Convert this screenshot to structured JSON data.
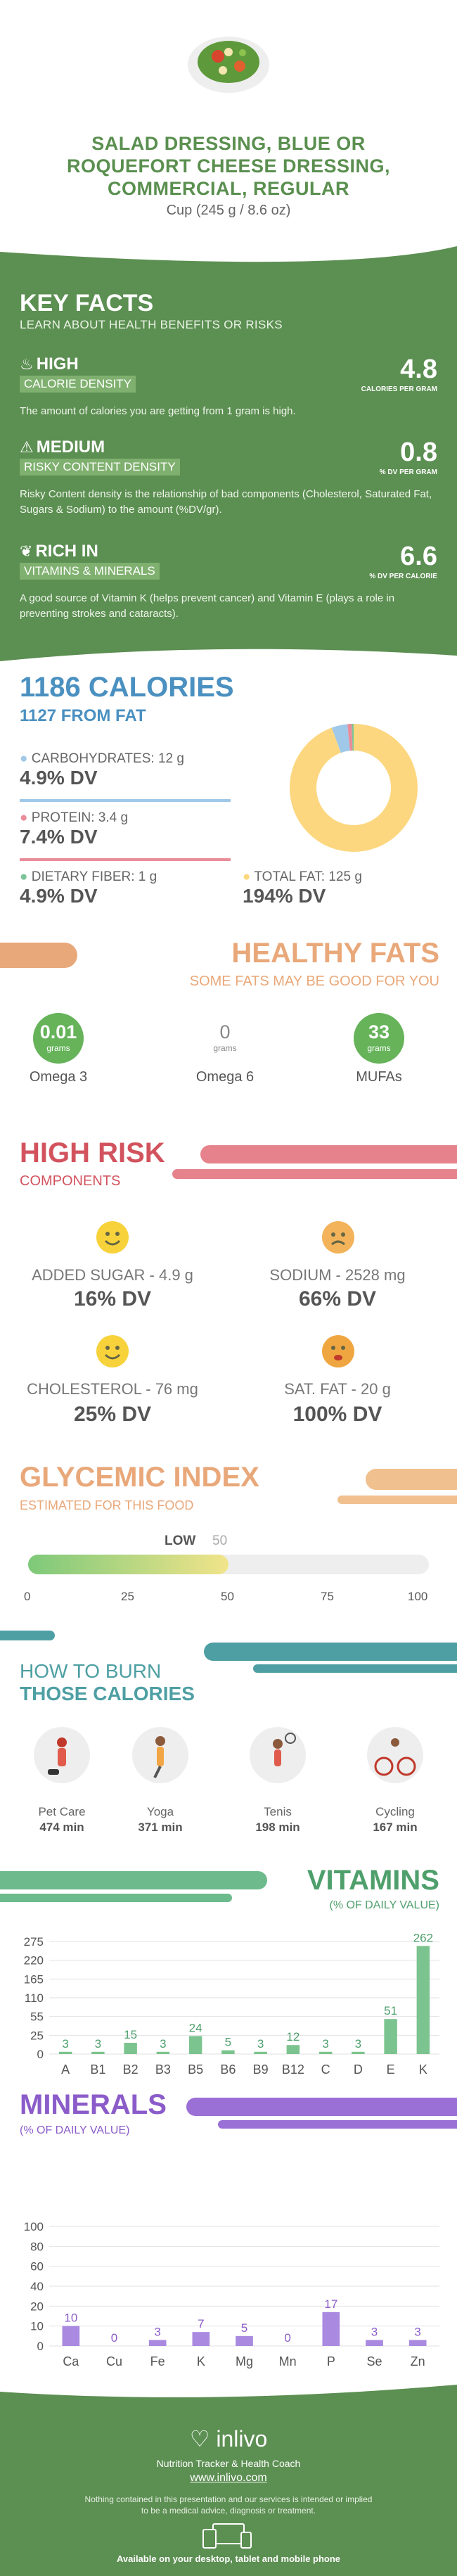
{
  "header": {
    "title_line1": "SALAD DRESSING, BLUE OR",
    "title_line2": "ROQUEFORT CHEESE DRESSING,",
    "title_line3": "COMMERCIAL, REGULAR",
    "serving": "Cup (245 g / 8.6 oz)"
  },
  "key_facts": {
    "title": "KEY FACTS",
    "subtitle": "LEARN ABOUT HEALTH BENEFITS OR RISKS",
    "items": [
      {
        "level": "HIGH",
        "label": "CALORIE DENSITY",
        "value": "4.8",
        "unit": "CALORIES PER GRAM",
        "desc": "The amount of calories you are getting from 1 gram is high."
      },
      {
        "level": "MEDIUM",
        "label": "RISKY CONTENT DENSITY",
        "value": "0.8",
        "unit": "% DV PER GRAM",
        "desc": "Risky Content density is the relationship of bad components (Cholesterol, Saturated Fat, Sugars & Sodium) to the amount (%DV/gr)."
      },
      {
        "level": "RICH  IN",
        "label": "VITAMINS & MINERALS",
        "value": "6.6",
        "unit": "% DV PER CALORIE",
        "desc": "A good source of Vitamin K (helps prevent cancer) and Vitamin E (plays a role in preventing strokes and cataracts)."
      }
    ]
  },
  "calories": {
    "title": "1186 CALORIES",
    "from_fat": "1127 FROM FAT",
    "carb_label": "CARBOHYDRATES: 12 g",
    "carb_dv": "4.9% DV",
    "protein_label": "PROTEIN: 3.4 g",
    "protein_dv": "7.4% DV",
    "fiber_label": "DIETARY FIBER: 1 g",
    "fiber_dv": "4.9% DV",
    "fat_label": "TOTAL FAT: 125 g",
    "fat_dv": "194% DV",
    "donut": {
      "fat": 94.4,
      "carb": 4.0,
      "protein": 1.1,
      "fiber": 0.5
    },
    "colors": {
      "fat": "#fcd77f",
      "carb": "#a0c8e8",
      "protein": "#e98d9a",
      "fiber": "#7dc49a"
    }
  },
  "healthy_fats": {
    "title": "HEALTHY FATS",
    "subtitle": "SOME FATS MAY BE GOOD FOR YOU",
    "items": [
      {
        "value": "0.01",
        "unit": "grams",
        "name": "Omega 3"
      },
      {
        "value": "0",
        "unit": "grams",
        "name": "Omega 6"
      },
      {
        "value": "33",
        "unit": "grams",
        "name": "MUFAs"
      }
    ]
  },
  "high_risk": {
    "title": "HIGH RISK",
    "subtitle": "COMPONENTS",
    "items": [
      {
        "label": "ADDED SUGAR - 4.9 g",
        "dv": "16% DV"
      },
      {
        "label": "SODIUM - 2528 mg",
        "dv": "66% DV"
      },
      {
        "label": "CHOLESTEROL - 76 mg",
        "dv": "25% DV"
      },
      {
        "label": "SAT. FAT - 20 g",
        "dv": "100% DV"
      }
    ]
  },
  "glycemic": {
    "title": "GLYCEMIC INDEX",
    "subtitle": "ESTIMATED FOR THIS FOOD",
    "level": "LOW",
    "value": "50",
    "ticks": [
      "0",
      "25",
      "50",
      "75",
      "100"
    ],
    "fraction": 0.5
  },
  "burn": {
    "title1": "HOW TO BURN",
    "title2": "THOSE CALORIES",
    "items": [
      {
        "name": "Pet Care",
        "time": "474 min"
      },
      {
        "name": "Yoga",
        "time": "371 min"
      },
      {
        "name": "Tenis",
        "time": "198 min"
      },
      {
        "name": "Cycling",
        "time": "167 min"
      }
    ]
  },
  "vitamins": {
    "title": "VITAMINS",
    "subtitle": "(% OF DAILY VALUE)"
  },
  "minerals": {
    "title": "MINERALS",
    "subtitle": "(% OF DAILY VALUE)"
  },
  "chart_data": [
    {
      "type": "bar",
      "title": "VITAMINS",
      "categories": [
        "A",
        "B1",
        "B2",
        "B3",
        "B5",
        "B6",
        "B9",
        "B12",
        "C",
        "D",
        "E",
        "K"
      ],
      "values": [
        3,
        3,
        15,
        3,
        24,
        5,
        3,
        12,
        3,
        3,
        51,
        262
      ],
      "yticks": [
        0,
        25,
        55,
        110,
        165,
        220,
        275
      ],
      "ylim": [
        0,
        275
      ]
    },
    {
      "type": "bar",
      "title": "MINERALS",
      "categories": [
        "Ca",
        "Cu",
        "Fe",
        "K",
        "Mg",
        "Mn",
        "P",
        "Se",
        "Zn"
      ],
      "values": [
        10,
        0,
        3,
        7,
        5,
        0,
        17,
        3,
        3
      ],
      "yticks": [
        0,
        10,
        20,
        40,
        60,
        80,
        100
      ],
      "ylim": [
        0,
        100
      ]
    }
  ],
  "footer": {
    "brand": "inlivo",
    "tagline": "Nutrition Tracker & Health Coach",
    "url": "www.inlivo.com",
    "disclaimer1": "Nothing contained in this presentation and our services is intended or implied",
    "disclaimer2": "to be a medical advice, diagnosis or treatment.",
    "available": "Available on your desktop, tablet and mobile phone"
  }
}
